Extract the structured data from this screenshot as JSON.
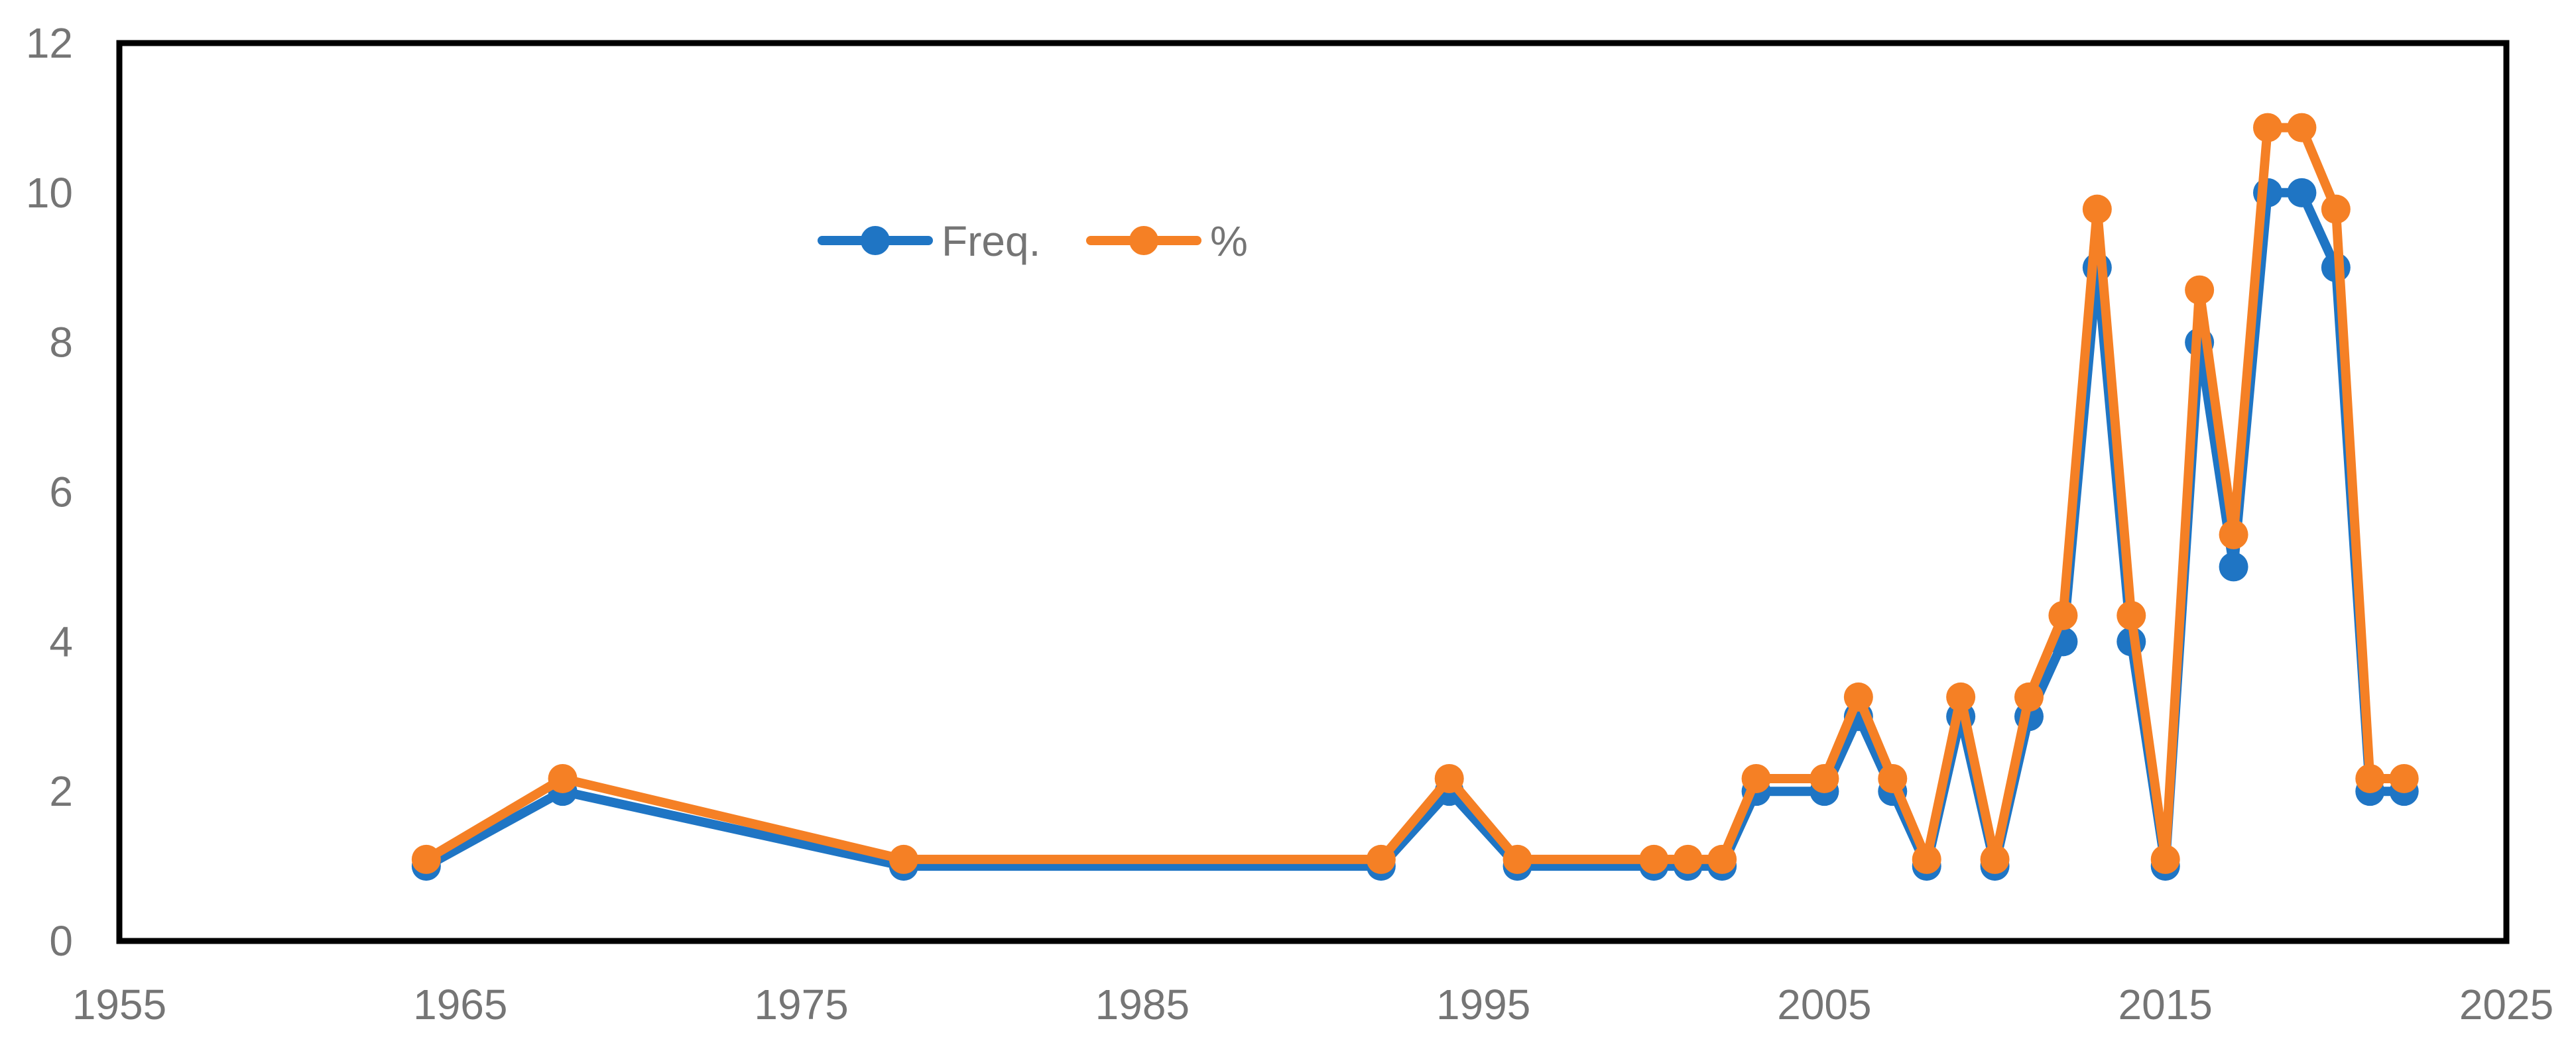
{
  "chart_data": {
    "type": "line",
    "title": "",
    "xlabel": "",
    "ylabel": "",
    "xlim": [
      1955,
      2025
    ],
    "ylim": [
      0,
      12
    ],
    "x_ticks": [
      1955,
      1965,
      1975,
      1985,
      1995,
      2005,
      2015,
      2025
    ],
    "y_ticks": [
      0,
      2,
      4,
      6,
      8,
      10,
      12
    ],
    "x_tick_labels": [
      "1955",
      "1965",
      "1975",
      "1985",
      "1995",
      "2005",
      "2015",
      "2025"
    ],
    "y_tick_labels": [
      "0",
      "2",
      "4",
      "6",
      "8",
      "10",
      "12"
    ],
    "grid": false,
    "legend_position": "top-center",
    "series": [
      {
        "name": "Freq.",
        "color": "#1f75c4",
        "x": [
          1964,
          1968,
          1978,
          1992,
          1994,
          1996,
          2000,
          2001,
          2002,
          2003,
          2005,
          2006,
          2007,
          2008,
          2009,
          2010,
          2011,
          2012,
          2013,
          2014,
          2015,
          2016,
          2017,
          2018,
          2019,
          2020,
          2021,
          2022
        ],
        "y": [
          1,
          2,
          1,
          1,
          2,
          1,
          1,
          1,
          1,
          2,
          2,
          3,
          2,
          1,
          3,
          1,
          3,
          4,
          9,
          4,
          1,
          8,
          5,
          10,
          10,
          9,
          2,
          2
        ]
      },
      {
        "name": "%",
        "color": "#f58025",
        "x": [
          1964,
          1968,
          1978,
          1992,
          1994,
          1996,
          2000,
          2001,
          2002,
          2003,
          2005,
          2006,
          2007,
          2008,
          2009,
          2010,
          2011,
          2012,
          2013,
          2014,
          2015,
          2016,
          2017,
          2018,
          2019,
          2020,
          2021,
          2022
        ],
        "y": [
          1.09,
          2.17,
          1.09,
          1.09,
          2.17,
          1.09,
          1.09,
          1.09,
          1.09,
          2.17,
          2.17,
          3.26,
          2.17,
          1.09,
          3.26,
          1.09,
          3.26,
          4.35,
          9.78,
          4.35,
          1.09,
          8.7,
          5.43,
          10.87,
          10.87,
          9.78,
          2.17,
          2.17
        ]
      }
    ]
  }
}
